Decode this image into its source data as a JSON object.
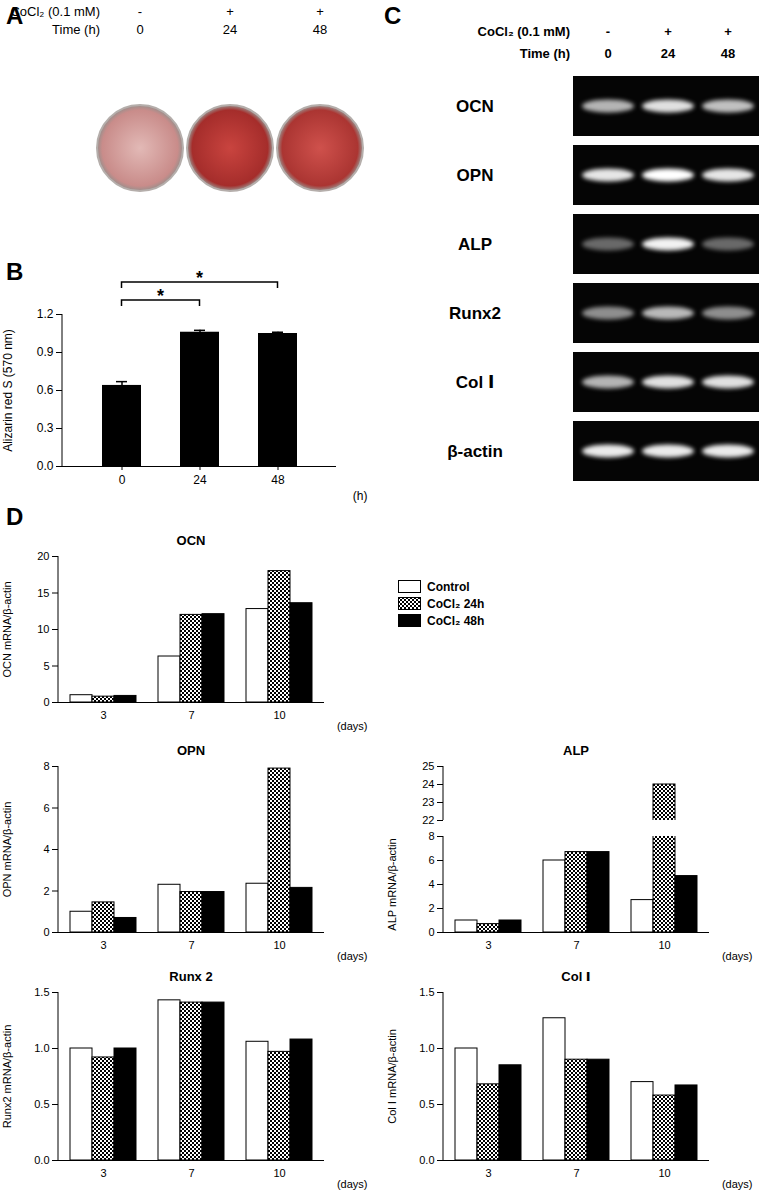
{
  "panel_labels": [
    "A",
    "B",
    "C",
    "D"
  ],
  "panel_a": {
    "header": [
      {
        "label": "CoCl₂ (0.1 mM)",
        "values": [
          "-",
          "+",
          "+"
        ]
      },
      {
        "label": "Time (h)",
        "values": [
          "0",
          "24",
          "48"
        ]
      }
    ]
  },
  "panel_c": {
    "header": [
      {
        "label": "CoCl₂ (0.1 mM)",
        "values": [
          "-",
          "+",
          "+"
        ]
      },
      {
        "label": "Time (h)",
        "values": [
          "0",
          "24",
          "48"
        ]
      }
    ],
    "genes": [
      {
        "name": "OCN",
        "band_intensity": [
          0.7,
          0.88,
          0.75
        ]
      },
      {
        "name": "OPN",
        "band_intensity": [
          0.9,
          1.0,
          0.9
        ]
      },
      {
        "name": "ALP",
        "band_intensity": [
          0.4,
          0.95,
          0.4
        ]
      },
      {
        "name": "Runx2",
        "band_intensity": [
          0.55,
          0.72,
          0.55
        ]
      },
      {
        "name": "Col Ⅰ",
        "band_intensity": [
          0.7,
          0.88,
          0.88
        ]
      },
      {
        "name": "β-actin",
        "band_intensity": [
          0.92,
          0.92,
          0.92
        ]
      }
    ]
  },
  "chart_data": [
    {
      "type": "bar",
      "categories": [
        "0",
        "24",
        "48"
      ],
      "values": [
        0.64,
        1.06,
        1.05
      ],
      "errors": [
        0.03,
        0.015,
        0.01
      ],
      "color": "#000000",
      "x_label": "(h)",
      "y_label": "Alizarin red S (570 nm)",
      "ylim": [
        0,
        1.2
      ],
      "yticks": [
        {
          "value": 0,
          "label": "0.0"
        },
        {
          "value": 0.3,
          "label": "0.3"
        },
        {
          "value": 0.6,
          "label": "0.6"
        },
        {
          "value": 0.9,
          "label": "0.9"
        },
        {
          "value": 1.2,
          "label": "1.2"
        }
      ],
      "annotations": [
        {
          "from": "0",
          "to": "24",
          "text": "*"
        },
        {
          "from": "0",
          "to": "48",
          "text": "*"
        }
      ]
    },
    {
      "type": "bar",
      "title": "OCN",
      "categories": [
        "3",
        "7",
        "10"
      ],
      "x_label": "(days)",
      "y_label": "OCN mRNA/β-actin",
      "ylim": [
        0,
        20
      ],
      "yticks": [
        0,
        5,
        10,
        15,
        20
      ],
      "series": [
        {
          "name": "Control",
          "color": "#ffffff",
          "marker": "solid",
          "values": [
            1,
            6.3,
            12.8
          ]
        },
        {
          "name": "CoCl₂ 24h",
          "color": "#000000",
          "marker": "checkered",
          "values": [
            0.8,
            12,
            18
          ]
        },
        {
          "name": "CoCl₂ 48h",
          "color": "#000000",
          "marker": "solid",
          "values": [
            0.9,
            12.1,
            13.6
          ]
        }
      ]
    },
    {
      "type": "bar",
      "title": "OPN",
      "categories": [
        "3",
        "7",
        "10"
      ],
      "x_label": "(days)",
      "y_label": "OPN mRNA/β-actin",
      "ylim": [
        0,
        8
      ],
      "yticks": [
        0,
        2,
        4,
        6,
        8
      ],
      "series": [
        {
          "name": "Control",
          "color": "#ffffff",
          "marker": "solid",
          "values": [
            1,
            2.3,
            2.35
          ]
        },
        {
          "name": "CoCl₂ 24h",
          "color": "#000000",
          "marker": "checkered",
          "values": [
            1.45,
            1.95,
            7.9
          ]
        },
        {
          "name": "CoCl₂ 48h",
          "color": "#000000",
          "marker": "solid",
          "values": [
            0.7,
            1.95,
            2.15
          ]
        }
      ]
    },
    {
      "type": "bar",
      "title": "ALP",
      "categories": [
        "3",
        "7",
        "10"
      ],
      "x_label": "(days)",
      "y_label": "ALP mRNA/β-actin",
      "ylim": [
        0,
        25
      ],
      "yticks": [
        0,
        2,
        4,
        6,
        8,
        22,
        23,
        24,
        25
      ],
      "series": [
        {
          "name": "Control",
          "color": "#ffffff",
          "marker": "solid",
          "values": [
            1,
            6,
            2.7
          ]
        },
        {
          "name": "CoCl₂ 24h",
          "color": "#000000",
          "marker": "checkered",
          "values": [
            0.7,
            6.7,
            24
          ]
        },
        {
          "name": "CoCl₂ 48h",
          "color": "#000000",
          "marker": "solid",
          "values": [
            1,
            6.7,
            4.7
          ]
        }
      ]
    },
    {
      "type": "bar",
      "title": "Runx 2",
      "categories": [
        "3",
        "7",
        "10"
      ],
      "x_label": "(days)",
      "y_label": "Runx2 mRNA/β-actin",
      "ylim": [
        0,
        1.5
      ],
      "yticks": [
        {
          "value": 0,
          "label": "0.0"
        },
        {
          "value": 0.5,
          "label": "0.5"
        },
        {
          "value": 1,
          "label": "1.0"
        },
        {
          "value": 1.5,
          "label": "1.5"
        }
      ],
      "series": [
        {
          "name": "Control",
          "color": "#ffffff",
          "marker": "solid",
          "values": [
            1.0,
            1.43,
            1.06
          ]
        },
        {
          "name": "CoCl₂ 24h",
          "color": "#000000",
          "marker": "checkered",
          "values": [
            0.92,
            1.41,
            0.97
          ]
        },
        {
          "name": "CoCl₂ 48h",
          "color": "#000000",
          "marker": "solid",
          "values": [
            1.0,
            1.41,
            1.08
          ]
        }
      ]
    },
    {
      "type": "bar",
      "title": "Col Ⅰ",
      "categories": [
        "3",
        "7",
        "10"
      ],
      "x_label": "(days)",
      "y_label": "Col Ⅰ mRNA/β-actin",
      "ylim": [
        0,
        1.5
      ],
      "yticks": [
        {
          "value": 0,
          "label": "0.0"
        },
        {
          "value": 0.5,
          "label": "0.5"
        },
        {
          "value": 1,
          "label": "1.0"
        },
        {
          "value": 1.5,
          "label": "1.5"
        }
      ],
      "series": [
        {
          "name": "Control",
          "color": "#ffffff",
          "marker": "solid",
          "values": [
            1.0,
            1.27,
            0.7
          ]
        },
        {
          "name": "CoCl₂ 24h",
          "color": "#000000",
          "marker": "checkered",
          "values": [
            0.68,
            0.9,
            0.58
          ]
        },
        {
          "name": "CoCl₂ 48h",
          "color": "#000000",
          "marker": "solid",
          "values": [
            0.85,
            0.9,
            0.67
          ]
        }
      ]
    }
  ]
}
